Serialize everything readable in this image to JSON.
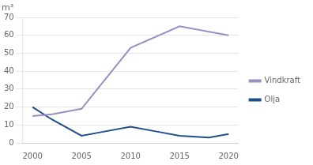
{
  "chart_data": {
    "type": "line",
    "ylabel": "m³",
    "series": [
      {
        "name": "Vindkraft",
        "color": "#9b8ec4",
        "x": [
          2000,
          2002,
          2005,
          2010,
          2015,
          2020
        ],
        "values": [
          15,
          16,
          19,
          53,
          65,
          60
        ]
      },
      {
        "name": "Olja",
        "color": "#1f4e8c",
        "x": [
          2000,
          2002,
          2005,
          2007,
          2010,
          2013,
          2015,
          2018,
          2020
        ],
        "values": [
          20,
          13,
          4,
          6,
          9,
          6,
          4,
          3,
          5
        ]
      }
    ],
    "xlim": [
      1999,
      2021
    ],
    "xticks": [
      2000,
      2005,
      2010,
      2015,
      2020
    ],
    "ylim": [
      0,
      70
    ],
    "yticks": [
      0,
      10,
      20,
      30,
      40,
      50,
      60,
      70
    ],
    "grid": "y",
    "legend": "right"
  }
}
